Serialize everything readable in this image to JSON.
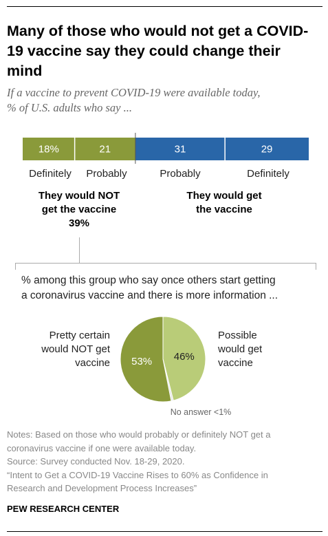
{
  "title": "Many of those who would not get a COVID-19 vaccine say they could change their mind",
  "subtitle_line1": "If a vaccine to prevent COVID-19 were available today,",
  "subtitle_line2": "% of U.S. adults who say ...",
  "group_not": {
    "line1": "They would NOT",
    "line2": "get the vaccine",
    "line3": "39%"
  },
  "group_would": {
    "line1": "They would get",
    "line2": "the vaccine"
  },
  "intro_line1": "% among this group who say once others start getting",
  "intro_line2": "a coronavirus vaccine and there is more information ...",
  "pie_left": {
    "line1": "Pretty certain",
    "line2": "would NOT get",
    "line3": "vaccine"
  },
  "pie_right": {
    "line1": "Possible",
    "line2": "would get",
    "line3": "vaccine"
  },
  "pie_note": "No answer <1%",
  "notes": [
    "Notes: Based on those who would probably or definitely NOT get a",
    "coronavirus vaccine if one were available today.",
    "Source: Survey conducted Nov. 18-29, 2020.",
    "“Intent to Get a COVID-19 Vaccine Rises to 60% as Confidence in",
    "Research and Development Process Increases”"
  ],
  "source": "PEW RESEARCH CENTER",
  "colors": {
    "green": "#8a9a3a",
    "light_green": "#b9cc78",
    "blue": "#2966a8"
  },
  "chart_data": [
    {
      "type": "bar",
      "orientation": "stacked-horizontal",
      "categories": [
        "Definitely",
        "Probably",
        "Probably",
        "Definitely"
      ],
      "values": [
        18,
        21,
        31,
        29
      ],
      "value_labels": [
        "18%",
        "21",
        "31",
        "29"
      ],
      "groups": [
        "They would NOT get the vaccine",
        "They would NOT get the vaccine",
        "They would get the vaccine",
        "They would get the vaccine"
      ]
    },
    {
      "type": "pie",
      "slices": [
        {
          "label": "Pretty certain would NOT get vaccine",
          "value": 53,
          "value_label": "53%"
        },
        {
          "label": "Possible would get vaccine",
          "value": 46,
          "value_label": "46%"
        },
        {
          "label": "No answer",
          "value": 0.8,
          "value_label": "<1%"
        }
      ]
    }
  ]
}
